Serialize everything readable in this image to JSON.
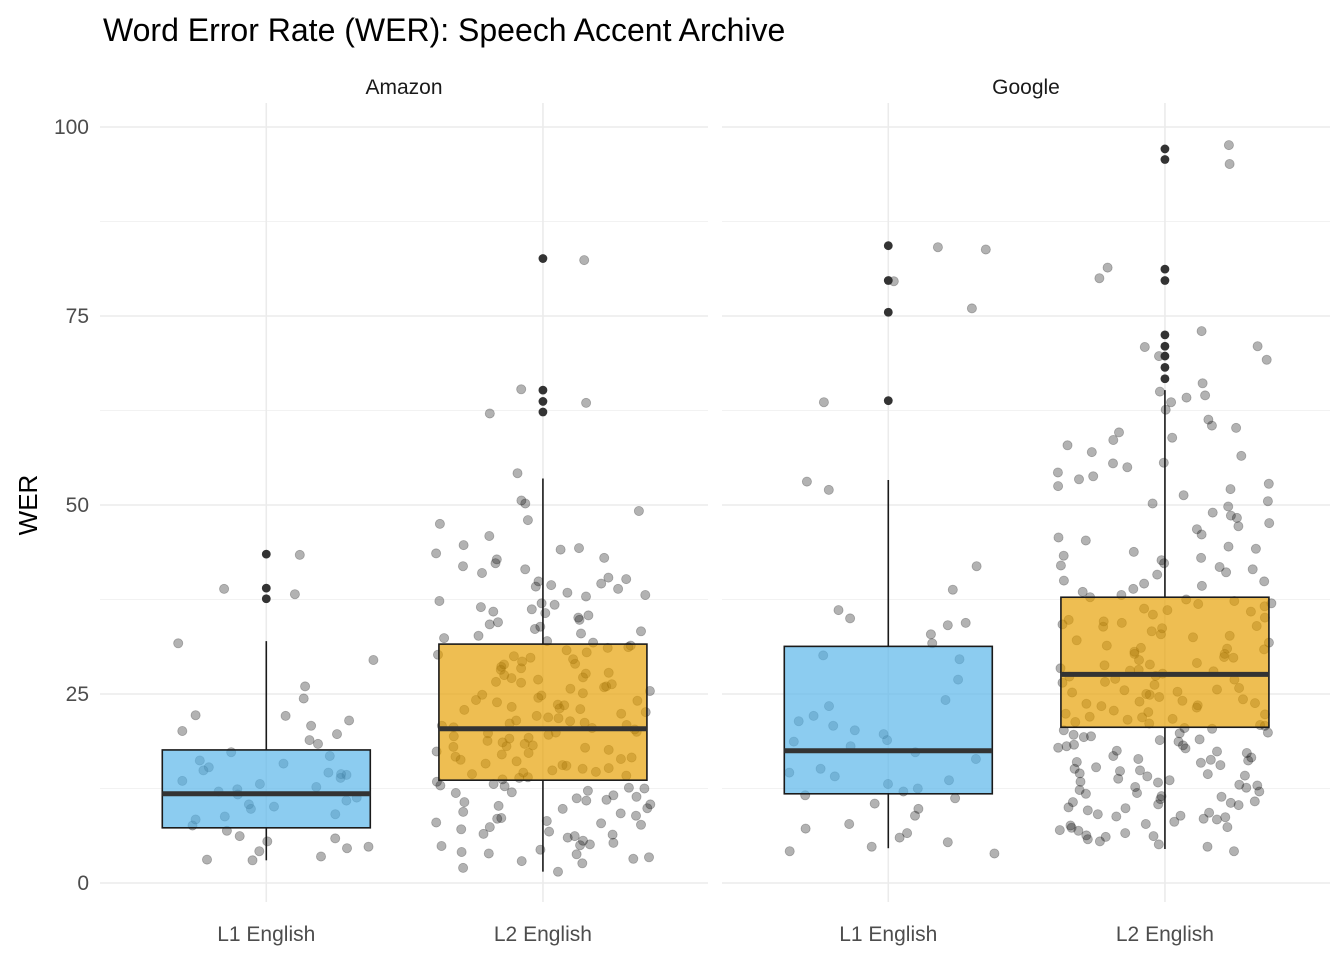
{
  "chart_data": {
    "type": "boxplot",
    "title": "Word Error Rate (WER): Speech Accent Archive",
    "ylabel": "WER",
    "xlabel": "",
    "ylim": [
      0,
      100
    ],
    "yticks": [
      0,
      25,
      50,
      75,
      100
    ],
    "categories": [
      "L1 English",
      "L2 English"
    ],
    "category_colors": [
      "#56B4E9",
      "#E69F00"
    ],
    "grid": true,
    "facets": [
      {
        "name": "Amazon",
        "boxes": [
          {
            "category": "L1 English",
            "q1": 7.3,
            "median": 11.8,
            "q3": 17.6,
            "whisker_low": 3.0,
            "whisker_high": 32.0,
            "outliers": [
              37.6,
              39.0,
              43.5
            ]
          },
          {
            "category": "L2 English",
            "q1": 13.6,
            "median": 20.4,
            "q3": 31.6,
            "whisker_low": 1.5,
            "whisker_high": 53.5,
            "outliers": [
              62.3,
              63.7,
              65.2,
              82.6
            ]
          }
        ]
      },
      {
        "name": "Google",
        "boxes": [
          {
            "category": "L1 English",
            "q1": 11.8,
            "median": 17.5,
            "q3": 31.3,
            "whisker_low": 4.6,
            "whisker_high": 53.3,
            "outliers": [
              63.8,
              75.5,
              79.7,
              84.3
            ]
          },
          {
            "category": "L2 English",
            "q1": 20.6,
            "median": 27.6,
            "q3": 37.8,
            "whisker_low": 4.5,
            "whisker_high": 65.2,
            "outliers": [
              66.7,
              68.2,
              69.7,
              71.0,
              72.5,
              79.7,
              81.2,
              95.7,
              97.1
            ]
          }
        ]
      }
    ],
    "jitter_points": [
      {
        "facet": "Amazon",
        "category": "L1 English",
        "values": [
          43.4,
          38.9,
          38.2,
          29.5,
          26.0,
          24.4,
          22.2,
          21.5,
          20.8,
          19.7,
          18.4,
          17.3,
          16.8,
          16.2,
          15.8,
          15.3,
          14.9,
          14.6,
          14.3,
          13.9,
          13.5,
          13.1,
          12.7,
          12.4,
          12.1,
          11.7,
          11.3,
          10.9,
          10.4,
          9.8,
          9.1,
          8.4,
          7.6,
          6.9,
          6.2,
          5.5,
          4.8,
          4.2,
          3.5,
          3.1,
          3.0,
          4.6,
          5.9,
          8.8,
          10.1,
          14.4,
          18.9,
          20.1,
          22.1,
          31.7
        ]
      },
      {
        "facet": "Amazon",
        "category": "L2 English",
        "values": [
          82.4,
          65.3,
          63.5,
          62.1,
          54.2,
          50.6,
          50.2,
          49.2,
          48.0,
          47.5,
          45.9,
          44.7,
          44.3,
          43.6,
          42.8,
          42.3,
          41.5,
          41.0,
          40.4,
          39.9,
          39.4,
          38.9,
          38.4,
          37.9,
          37.3,
          36.8,
          36.2,
          35.7,
          35.1,
          34.5,
          33.9,
          33.3,
          32.7,
          32.0,
          31.4,
          30.8,
          30.2,
          29.6,
          29.0,
          28.4,
          27.8,
          27.2,
          26.6,
          26.0,
          25.4,
          24.8,
          24.2,
          23.6,
          23.0,
          22.4,
          21.8,
          21.2,
          20.6,
          20.0,
          19.4,
          18.8,
          18.2,
          17.6,
          17.0,
          16.4,
          15.8,
          15.2,
          14.6,
          14.0,
          13.4,
          12.8,
          12.2,
          11.6,
          11.0,
          10.4,
          9.8,
          9.2,
          8.6,
          8.0,
          7.4,
          6.8,
          6.2,
          5.6,
          5.0,
          4.4,
          3.8,
          3.2,
          2.6,
          2.0,
          1.5,
          36.5,
          33.0,
          29.8,
          27.5,
          25.1,
          23.3,
          21.5,
          19.8,
          18.1,
          16.3,
          14.9,
          12.5,
          10.9,
          8.2,
          5.3,
          31.1,
          28.9,
          26.9,
          24.5,
          22.9,
          20.9,
          19.1,
          17.4,
          15.5,
          13.9,
          11.9,
          9.4,
          7.1,
          4.1,
          39.6,
          35.4,
          30.5,
          27.1,
          24.9,
          22.1,
          20.3,
          18.6,
          16.7,
          14.2,
          12.0,
          9.9,
          6.5,
          3.9,
          44.1,
          38.1,
          34.2,
          31.8,
          28.2,
          26.3,
          23.9,
          21.9,
          20.5,
          19.6,
          17.9,
          15.1,
          13.1,
          10.7,
          7.9,
          4.9,
          41.9,
          37.0,
          33.6,
          30.0,
          27.7,
          25.7,
          23.1,
          21.1,
          19.2,
          17.2,
          15.6,
          13.7,
          11.4,
          8.9,
          6.0,
          2.9,
          40.2,
          35.9,
          32.4,
          29.3,
          26.5,
          24.1,
          22.6,
          20.8,
          18.4,
          16.1,
          14.4,
          12.6,
          10.2,
          7.7,
          5.1,
          3.4,
          43.0,
          39.2,
          34.8,
          31.2,
          28.6,
          25.9,
          23.5,
          21.4,
          19.9,
          18.0,
          16.6,
          14.7,
          12.9,
          11.2,
          8.5,
          6.4
        ]
      },
      {
        "facet": "Google",
        "category": "L1 English",
        "values": [
          84.1,
          83.8,
          79.6,
          76.0,
          63.6,
          53.1,
          52.0,
          41.9,
          38.8,
          36.1,
          35.0,
          34.4,
          34.1,
          32.9,
          31.7,
          30.1,
          29.6,
          26.9,
          24.2,
          23.4,
          22.1,
          21.4,
          20.8,
          20.2,
          19.7,
          18.9,
          18.7,
          18.1,
          17.3,
          16.4,
          15.1,
          14.6,
          14.1,
          13.6,
          13.1,
          12.5,
          12.1,
          11.6,
          11.2,
          10.5,
          9.8,
          8.9,
          7.8,
          7.2,
          6.6,
          6.0,
          5.4,
          4.8,
          4.2,
          3.9
        ]
      },
      {
        "facet": "Google",
        "category": "L2 English",
        "values": [
          97.6,
          95.1,
          81.4,
          80.0,
          73.0,
          71.0,
          70.9,
          69.7,
          69.2,
          66.1,
          65.0,
          64.5,
          63.6,
          62.6,
          61.3,
          60.5,
          59.6,
          58.6,
          57.9,
          57.0,
          56.5,
          55.6,
          55.0,
          54.3,
          53.4,
          52.8,
          52.1,
          51.3,
          50.5,
          49.8,
          49.0,
          48.3,
          47.6,
          46.8,
          46.1,
          45.3,
          44.5,
          43.8,
          43.0,
          42.3,
          41.5,
          40.8,
          40.0,
          39.3,
          38.5,
          37.8,
          37.0,
          36.3,
          35.5,
          34.8,
          34.0,
          33.3,
          32.5,
          31.8,
          31.0,
          30.3,
          29.5,
          28.8,
          28.0,
          27.3,
          26.5,
          25.8,
          25.0,
          24.3,
          23.5,
          22.8,
          22.0,
          21.3,
          20.5,
          19.8,
          19.0,
          18.3,
          17.5,
          16.8,
          16.0,
          15.3,
          14.5,
          13.8,
          13.0,
          12.3,
          11.5,
          10.8,
          10.0,
          9.3,
          8.5,
          7.8,
          7.0,
          6.3,
          5.5,
          4.8,
          4.2,
          36.9,
          34.6,
          32.9,
          31.4,
          29.9,
          28.4,
          27.0,
          25.5,
          24.0,
          22.6,
          21.1,
          19.6,
          18.1,
          16.6,
          15.1,
          13.6,
          12.1,
          10.6,
          9.1,
          7.6,
          6.1,
          44.2,
          41.1,
          38.9,
          36.6,
          34.4,
          32.1,
          30.6,
          29.1,
          27.7,
          26.2,
          24.6,
          23.2,
          21.7,
          20.2,
          18.7,
          17.2,
          15.6,
          14.2,
          12.7,
          11.1,
          9.6,
          8.1,
          6.6,
          5.1,
          48.6,
          42.7,
          39.6,
          37.3,
          35.1,
          33.7,
          31.1,
          28.9,
          26.9,
          25.3,
          23.8,
          22.3,
          20.8,
          19.3,
          17.8,
          16.3,
          14.8,
          13.3,
          11.8,
          10.3,
          8.8,
          7.3,
          5.8,
          60.2,
          53.8,
          45.7,
          41.8,
          38.1,
          35.9,
          33.9,
          30.9,
          28.2,
          26.6,
          24.9,
          23.4,
          21.9,
          20.4,
          18.9,
          17.4,
          15.9,
          14.4,
          12.9,
          11.4,
          9.9,
          8.4,
          6.9,
          64.2,
          55.5,
          50.2,
          43.3,
          39.9,
          36.1,
          32.7,
          29.8,
          27.4,
          25.6,
          24.1,
          22.4,
          20.9,
          19.4,
          17.9,
          16.4,
          14.9,
          13.4,
          11.9,
          10.4,
          8.9,
          7.4,
          58.9,
          52.5,
          47.2,
          42.0,
          37.5,
          34.2,
          30.3,
          28.1,
          25.2,
          23.7,
          21.6,
          19.9,
          18.2,
          16.2,
          14.1,
          12.6,
          10.7,
          8.7,
          6.2
        ]
      }
    ]
  }
}
